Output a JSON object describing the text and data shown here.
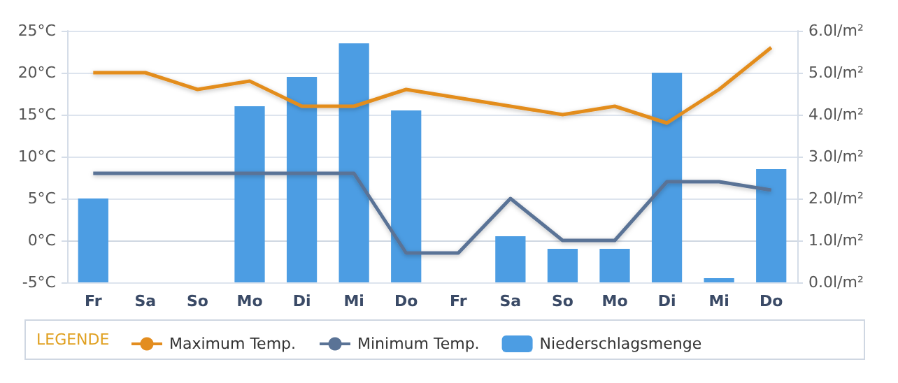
{
  "chart_data": {
    "type": "line",
    "categories": [
      "Fr",
      "Sa",
      "So",
      "Mo",
      "Di",
      "Mi",
      "Do",
      "Fr",
      "Sa",
      "So",
      "Mo",
      "Di",
      "Mi",
      "Do"
    ],
    "series": [
      {
        "name": "Maximum Temp.",
        "color": "#e38d1f",
        "values": [
          20,
          20,
          18,
          19,
          16,
          16,
          18,
          17,
          16,
          15,
          16,
          14,
          18,
          23
        ]
      },
      {
        "name": "Minimum Temp.",
        "color": "#5a7396",
        "values": [
          8,
          8,
          8,
          8,
          8,
          8,
          -1.5,
          -1.5,
          5,
          0,
          0,
          7,
          7,
          6
        ]
      },
      {
        "name": "Niederschlagsmenge",
        "type": "bar",
        "axis": "y2",
        "color": "#4c9de3",
        "values": [
          2.0,
          null,
          null,
          4.2,
          4.9,
          5.7,
          4.1,
          null,
          1.1,
          0.8,
          0.8,
          5.0,
          0.1,
          2.7
        ]
      }
    ],
    "ylim": [
      -5,
      25
    ],
    "yticks": [
      {
        "value": -5,
        "label": "-5°C"
      },
      {
        "value": 0,
        "label": "0°C"
      },
      {
        "value": 5,
        "label": "5°C"
      },
      {
        "value": 10,
        "label": "10°C"
      },
      {
        "value": 15,
        "label": "15°C"
      },
      {
        "value": 20,
        "label": "20°C"
      },
      {
        "value": 25,
        "label": "25°C"
      }
    ],
    "y2lim": [
      0,
      6
    ],
    "y2ticks": [
      {
        "value": 0,
        "label": "0.0l/m²"
      },
      {
        "value": 1,
        "label": "1.0l/m²"
      },
      {
        "value": 2,
        "label": "2.0l/m²"
      },
      {
        "value": 3,
        "label": "3.0l/m²"
      },
      {
        "value": 4,
        "label": "4.0l/m²"
      },
      {
        "value": 5,
        "label": "5.0l/m²"
      },
      {
        "value": 6,
        "label": "6.0l/m²"
      }
    ],
    "grid": "y",
    "legend": "bottom",
    "legend_title": "LEGENDE",
    "marker": "none"
  }
}
